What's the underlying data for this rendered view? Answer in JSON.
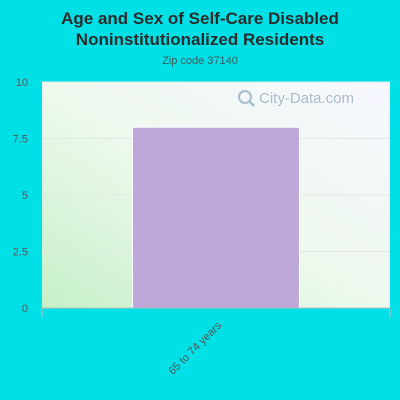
{
  "chart_data": {
    "type": "bar",
    "title": "Age and Sex of Self-Care Disabled Noninstitutionalized Residents",
    "subtitle": "Zip code 37140",
    "categories": [
      "65 to 74 years"
    ],
    "series": [
      {
        "values": [
          8
        ],
        "color": "#bea8da"
      }
    ],
    "ylim": [
      0,
      10
    ],
    "yticks": [
      "0",
      "2.5",
      "5",
      "7.5",
      "10"
    ],
    "ytick_values": [
      0,
      2.5,
      5,
      7.5,
      10
    ],
    "grid": true,
    "legend": "none"
  },
  "watermark": {
    "text": "City-Data.com",
    "icon": "search-icon"
  },
  "colors": {
    "background": "#00e0e6",
    "bar": "#bea8da"
  }
}
